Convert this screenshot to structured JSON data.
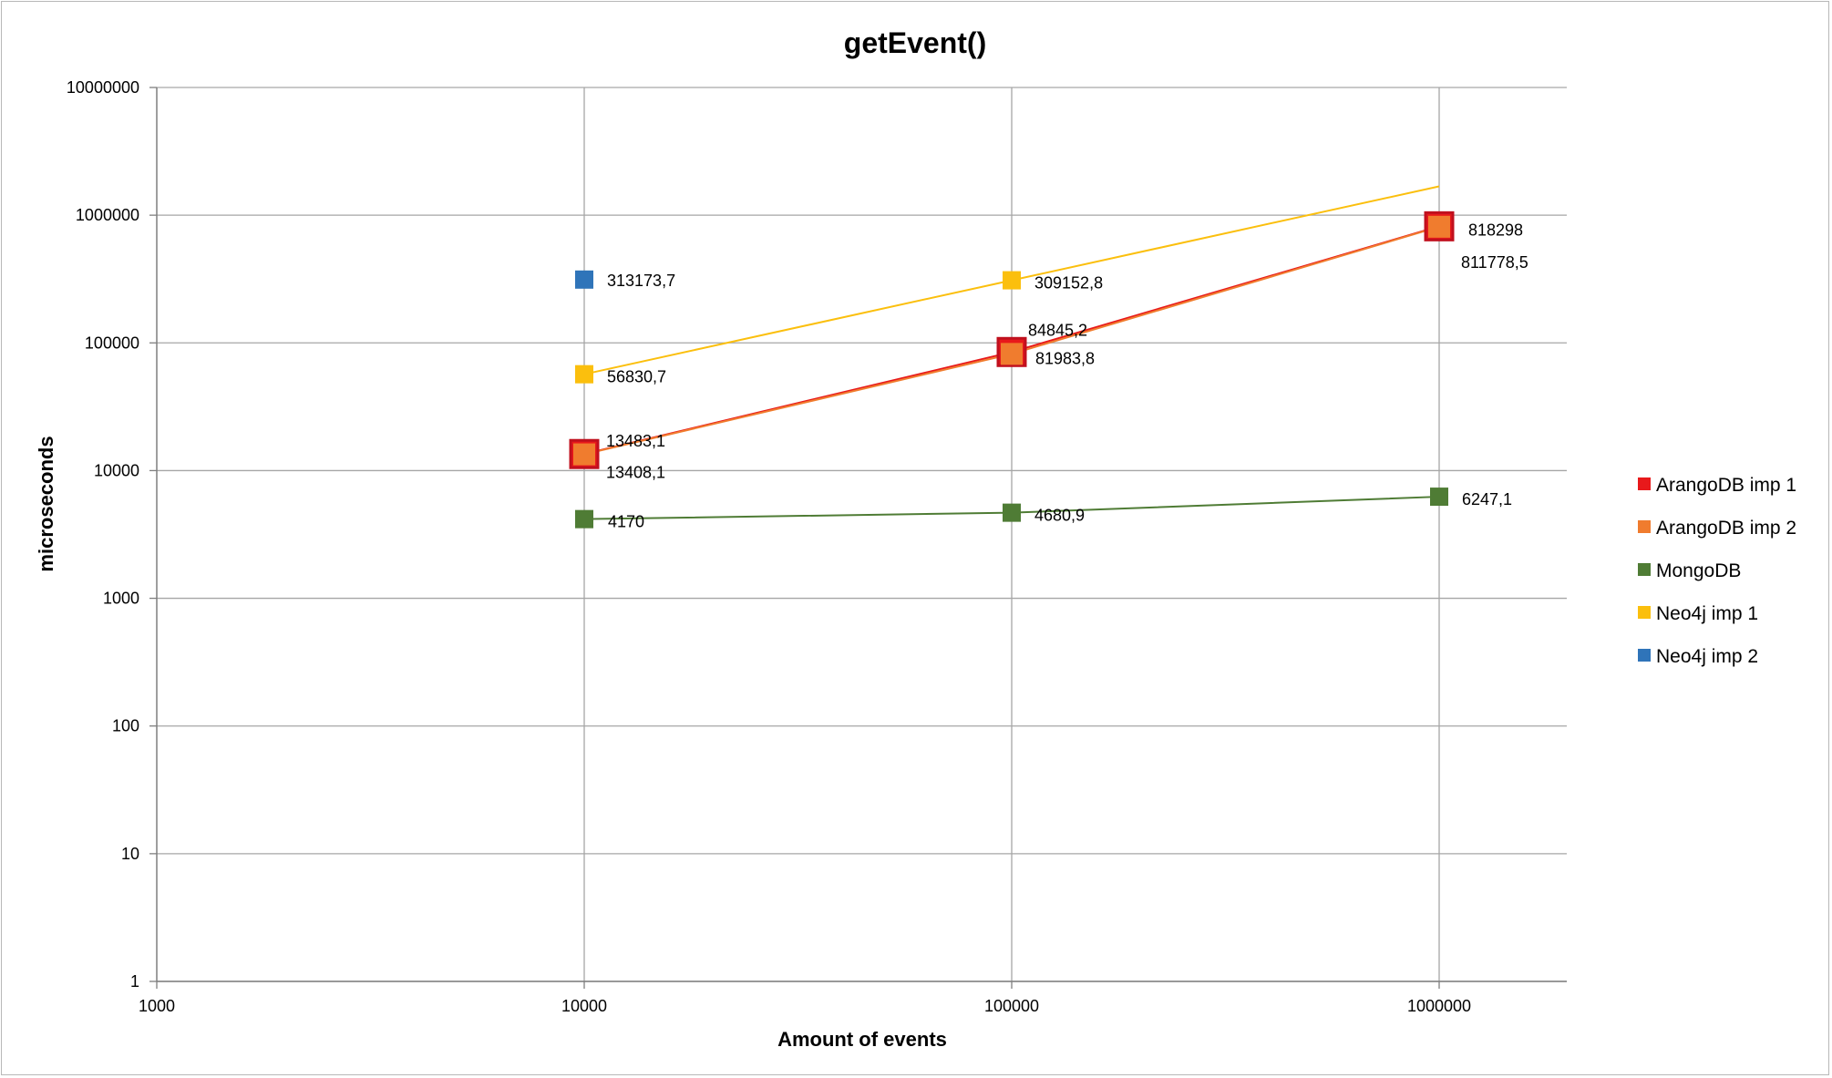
{
  "chart_data": {
    "type": "scatter",
    "title": "getEvent()",
    "xlabel": "Amount of events",
    "ylabel": "microseconds",
    "x_scale": "log",
    "y_scale": "log",
    "xlim": [
      1000,
      2000000
    ],
    "ylim": [
      1,
      10000000
    ],
    "x_ticks": [
      1000,
      10000,
      100000,
      1000000
    ],
    "x_tick_labels": [
      "1000",
      "10000",
      "100000",
      "1000000"
    ],
    "y_ticks": [
      1,
      10,
      100,
      1000,
      10000,
      100000,
      1000000,
      10000000
    ],
    "y_tick_labels": [
      "1",
      "10",
      "100",
      "1000",
      "10000",
      "100000",
      "1000000",
      "10000000"
    ],
    "grid": true,
    "legend_position": "right",
    "series": [
      {
        "name": "ArangoDB imp 1",
        "color": "#e8191b",
        "x": [
          10000,
          100000,
          1000000
        ],
        "y": [
          13483.1,
          84845.2,
          818298
        ],
        "labels": [
          "13483,1",
          "84845,2",
          "818298"
        ],
        "trend_to": null
      },
      {
        "name": "ArangoDB imp 2",
        "color": "#f07c2e",
        "x": [
          10000,
          100000,
          1000000
        ],
        "y": [
          13408.1,
          81983.8,
          811778.5
        ],
        "labels": [
          "13408,1",
          "81983,8",
          "811778,5"
        ],
        "trend_to": null
      },
      {
        "name": "MongoDB",
        "color": "#4f7c35",
        "x": [
          10000,
          100000,
          1000000
        ],
        "y": [
          4170,
          4680.9,
          6247.1
        ],
        "labels": [
          "4170",
          "4680,9",
          "6247,1"
        ],
        "trend_to": null
      },
      {
        "name": "Neo4j imp 1",
        "color": "#fbbf0d",
        "x": [
          10000,
          100000
        ],
        "y": [
          56830.7,
          309152.8
        ],
        "labels": [
          "56830,7",
          "309152,8"
        ],
        "trend_to": 1000000
      },
      {
        "name": "Neo4j imp 2",
        "color": "#2f74b9",
        "x": [
          10000
        ],
        "y": [
          313173.7
        ],
        "labels": [
          "313173,7"
        ],
        "trend_to": null
      }
    ]
  }
}
